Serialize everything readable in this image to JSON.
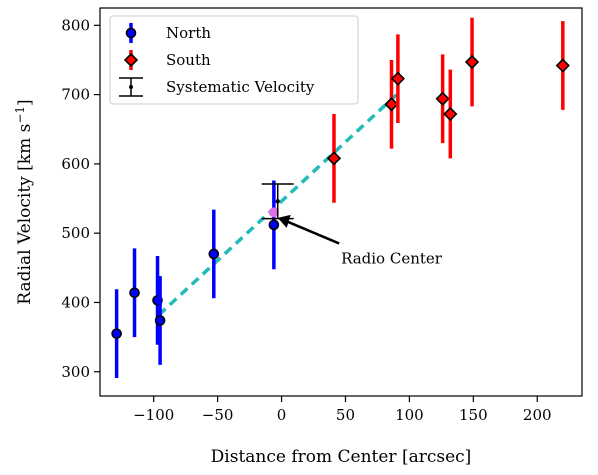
{
  "chart_data": {
    "type": "scatter",
    "xlabel": "Distance from Center [arcsec]",
    "ylabel": "Radial Velocity [km s",
    "ylabel_sup": "−1",
    "ylabel_end": "]",
    "xlim": [
      -142,
      235
    ],
    "ylim": [
      265,
      825
    ],
    "x_ticks": [
      -100,
      -50,
      0,
      50,
      100,
      150,
      200
    ],
    "x_tick_labels": [
      "−100",
      "−50",
      "0",
      "50",
      "100",
      "150",
      "200"
    ],
    "y_ticks": [
      300,
      400,
      500,
      600,
      700,
      800
    ],
    "y_tick_labels": [
      "300",
      "400",
      "500",
      "600",
      "700",
      "800"
    ],
    "legend_position": "top-left",
    "series": [
      {
        "name": "North",
        "color": "#0000ff",
        "marker": "circle",
        "points": [
          {
            "x": -129,
            "y": 355,
            "err": 64
          },
          {
            "x": -115,
            "y": 414,
            "err": 64
          },
          {
            "x": -97,
            "y": 403,
            "err": 64
          },
          {
            "x": -95,
            "y": 374,
            "err": 64
          },
          {
            "x": -53,
            "y": 470,
            "err": 64
          },
          {
            "x": -6,
            "y": 512,
            "err": 64
          }
        ]
      },
      {
        "name": "South",
        "color": "#ff0000",
        "marker": "diamond",
        "points": [
          {
            "x": 41,
            "y": 608,
            "err": 64
          },
          {
            "x": 86,
            "y": 686,
            "err": 64
          },
          {
            "x": 91,
            "y": 723,
            "err": 64
          },
          {
            "x": 126,
            "y": 694,
            "err": 64
          },
          {
            "x": 132,
            "y": 672,
            "err": 64
          },
          {
            "x": 149,
            "y": 747,
            "err": 64
          },
          {
            "x": 220,
            "y": 742,
            "err": 64
          }
        ]
      }
    ],
    "systematic_velocity": {
      "name": "Systematic Velocity",
      "x": -3,
      "y": 546,
      "err": 25
    },
    "fit_line": {
      "color": "#22bbbb",
      "x": [
        -96,
        90
      ],
      "y": [
        382,
        700
      ]
    },
    "center_marker": {
      "x": -6,
      "y": 530
    },
    "annotation": {
      "text": "Radio Center",
      "point_x": -3,
      "point_y": 522,
      "text_x": 45,
      "text_y": 465
    }
  }
}
